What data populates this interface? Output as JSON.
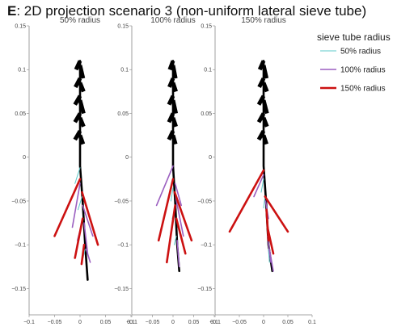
{
  "figure": {
    "letter": "E",
    "title": ": 2D projection scenario 3 (non-uniform lateral sieve tube)"
  },
  "legend": {
    "title": "sieve tube radius",
    "items": [
      {
        "label": "50% radius",
        "color": "#5bc8c8",
        "width": 1
      },
      {
        "label": "100% radius",
        "color": "#9b5fc0",
        "width": 1.6
      },
      {
        "label": "150% radius",
        "color": "#cc1111",
        "width": 2.6
      }
    ]
  },
  "chart_data": [
    {
      "type": "line",
      "title": "50% radius",
      "xlim": [
        -0.1,
        0.1
      ],
      "ylim": [
        -0.18,
        0.15
      ],
      "xticks": [
        -0.1,
        -0.05,
        0,
        0.05,
        0.1
      ],
      "yticks": [
        0.15,
        0.1,
        0.05,
        0,
        -0.05,
        -0.1,
        -0.15
      ],
      "series": [
        {
          "name": "main axis",
          "color": "#000000",
          "segments": [
            [
              [
                0.0,
                0.11
              ],
              [
                0.0,
                -0.01
              ],
              [
                0.005,
                -0.05
              ],
              [
                0.01,
                -0.1
              ],
              [
                0.015,
                -0.14
              ]
            ]
          ]
        },
        {
          "name": "shoot laterals",
          "color": "#000000",
          "segments": [
            [
              [
                0.0,
                0.11
              ],
              [
                -0.008,
                0.1
              ]
            ],
            [
              [
                0.0,
                0.105
              ],
              [
                0.006,
                0.09
              ]
            ],
            [
              [
                0.0,
                0.09
              ],
              [
                -0.009,
                0.08
              ]
            ],
            [
              [
                0.0,
                0.085
              ],
              [
                0.007,
                0.075
              ]
            ],
            [
              [
                0.0,
                0.07
              ],
              [
                -0.01,
                0.06
              ]
            ],
            [
              [
                0.0,
                0.065
              ],
              [
                0.007,
                0.05
              ]
            ],
            [
              [
                0.0,
                0.05
              ],
              [
                -0.01,
                0.04
              ]
            ],
            [
              [
                0.0,
                0.045
              ],
              [
                0.007,
                0.035
              ]
            ],
            [
              [
                0.0,
                0.03
              ],
              [
                -0.01,
                0.02
              ]
            ],
            [
              [
                0.0,
                0.025
              ],
              [
                0.006,
                0.015
              ]
            ]
          ]
        },
        {
          "name": "50% radius",
          "color": "#5bc8c8",
          "segments": [
            [
              [
                0.0,
                -0.012
              ],
              [
                -0.01,
                -0.03
              ]
            ],
            [
              [
                0.004,
                -0.045
              ],
              [
                -0.004,
                -0.06
              ]
            ],
            [
              [
                0.006,
                -0.07
              ],
              [
                0.0,
                -0.082
              ]
            ],
            [
              [
                0.01,
                -0.105
              ],
              [
                0.006,
                -0.115
              ]
            ]
          ]
        },
        {
          "name": "100% radius",
          "color": "#9b5fc0",
          "segments": [
            [
              [
                0.0,
                -0.03
              ],
              [
                -0.015,
                -0.08
              ]
            ],
            [
              [
                0.005,
                -0.055
              ],
              [
                0.025,
                -0.09
              ]
            ],
            [
              [
                0.006,
                -0.07
              ],
              [
                -0.005,
                -0.095
              ]
            ],
            [
              [
                0.008,
                -0.075
              ],
              [
                0.015,
                -0.11
              ]
            ],
            [
              [
                0.012,
                -0.105
              ],
              [
                0.02,
                -0.12
              ]
            ]
          ]
        },
        {
          "name": "150% radius",
          "color": "#cc1111",
          "segments": [
            [
              [
                0.0,
                -0.025
              ],
              [
                -0.05,
                -0.09
              ]
            ],
            [
              [
                0.004,
                -0.04
              ],
              [
                0.035,
                -0.1
              ]
            ],
            [
              [
                0.005,
                -0.07
              ],
              [
                -0.01,
                -0.115
              ]
            ],
            [
              [
                0.008,
                -0.1
              ],
              [
                0.003,
                -0.122
              ]
            ]
          ]
        }
      ]
    },
    {
      "type": "line",
      "title": "100% radius",
      "xlim": [
        -0.1,
        0.1
      ],
      "ylim": [
        -0.18,
        0.15
      ],
      "xticks": [
        -0.1,
        -0.05,
        0,
        0.05,
        0.1
      ],
      "yticks": [
        0.15,
        0.1,
        0.05,
        0,
        -0.05,
        -0.1,
        -0.15
      ],
      "series": [
        {
          "name": "main axis",
          "color": "#000000",
          "segments": [
            [
              [
                0.0,
                0.11
              ],
              [
                0.0,
                -0.01
              ],
              [
                0.005,
                -0.05
              ],
              [
                0.01,
                -0.1
              ],
              [
                0.015,
                -0.13
              ]
            ]
          ]
        },
        {
          "name": "shoot laterals",
          "color": "#000000",
          "segments": [
            [
              [
                0.0,
                0.11
              ],
              [
                -0.008,
                0.1
              ]
            ],
            [
              [
                0.0,
                0.105
              ],
              [
                0.006,
                0.09
              ]
            ],
            [
              [
                0.0,
                0.09
              ],
              [
                -0.009,
                0.08
              ]
            ],
            [
              [
                0.0,
                0.085
              ],
              [
                0.007,
                0.075
              ]
            ],
            [
              [
                0.0,
                0.07
              ],
              [
                -0.01,
                0.06
              ]
            ],
            [
              [
                0.0,
                0.065
              ],
              [
                0.007,
                0.05
              ]
            ],
            [
              [
                0.0,
                0.05
              ],
              [
                -0.01,
                0.04
              ]
            ],
            [
              [
                0.0,
                0.045
              ],
              [
                0.007,
                0.035
              ]
            ],
            [
              [
                0.0,
                0.03
              ],
              [
                -0.01,
                0.02
              ]
            ],
            [
              [
                0.0,
                0.025
              ],
              [
                0.006,
                0.015
              ]
            ]
          ]
        },
        {
          "name": "50% radius",
          "color": "#5bc8c8",
          "segments": [
            [
              [
                0.0,
                -0.035
              ],
              [
                -0.005,
                -0.05
              ]
            ],
            [
              [
                0.004,
                -0.06
              ],
              [
                -0.002,
                -0.07
              ]
            ],
            [
              [
                0.008,
                -0.09
              ],
              [
                0.003,
                -0.1
              ]
            ],
            [
              [
                0.012,
                -0.11
              ],
              [
                0.015,
                -0.12
              ]
            ]
          ]
        },
        {
          "name": "100% radius",
          "color": "#9b5fc0",
          "segments": [
            [
              [
                0.0,
                -0.01
              ],
              [
                -0.04,
                -0.055
              ]
            ],
            [
              [
                0.005,
                -0.03
              ],
              [
                0.02,
                -0.055
              ]
            ],
            [
              [
                0.006,
                -0.045
              ],
              [
                0.025,
                -0.09
              ]
            ],
            [
              [
                0.01,
                -0.095
              ],
              [
                0.015,
                -0.125
              ]
            ]
          ]
        },
        {
          "name": "150% radius",
          "color": "#cc1111",
          "segments": [
            [
              [
                0.0,
                -0.025
              ],
              [
                -0.035,
                -0.095
              ]
            ],
            [
              [
                0.004,
                -0.04
              ],
              [
                0.045,
                -0.095
              ]
            ],
            [
              [
                0.005,
                -0.055
              ],
              [
                -0.015,
                -0.12
              ]
            ],
            [
              [
                0.008,
                -0.07
              ],
              [
                0.03,
                -0.11
              ]
            ]
          ]
        }
      ]
    },
    {
      "type": "line",
      "title": "150% radius",
      "xlim": [
        -0.1,
        0.1
      ],
      "ylim": [
        -0.18,
        0.15
      ],
      "xticks": [
        -0.1,
        -0.05,
        0,
        0.05,
        0.1
      ],
      "yticks": [
        0.15,
        0.1,
        0.05,
        0,
        -0.05,
        -0.1,
        -0.15
      ],
      "series": [
        {
          "name": "main axis",
          "color": "#000000",
          "segments": [
            [
              [
                0.0,
                0.11
              ],
              [
                0.0,
                -0.01
              ],
              [
                0.005,
                -0.05
              ],
              [
                0.01,
                -0.1
              ],
              [
                0.018,
                -0.13
              ]
            ]
          ]
        },
        {
          "name": "shoot laterals",
          "color": "#000000",
          "segments": [
            [
              [
                0.0,
                0.11
              ],
              [
                -0.008,
                0.1
              ]
            ],
            [
              [
                0.0,
                0.105
              ],
              [
                0.006,
                0.09
              ]
            ],
            [
              [
                0.0,
                0.09
              ],
              [
                -0.009,
                0.08
              ]
            ],
            [
              [
                0.0,
                0.085
              ],
              [
                0.007,
                0.075
              ]
            ],
            [
              [
                0.0,
                0.07
              ],
              [
                -0.01,
                0.06
              ]
            ],
            [
              [
                0.0,
                0.065
              ],
              [
                0.007,
                0.05
              ]
            ],
            [
              [
                0.0,
                0.05
              ],
              [
                -0.01,
                0.04
              ]
            ],
            [
              [
                0.0,
                0.045
              ],
              [
                0.007,
                0.035
              ]
            ],
            [
              [
                0.0,
                0.03
              ],
              [
                -0.01,
                0.02
              ]
            ],
            [
              [
                0.0,
                0.025
              ],
              [
                0.006,
                0.015
              ]
            ]
          ]
        },
        {
          "name": "50% radius",
          "color": "#5bc8c8",
          "segments": [
            [
              [
                0.0,
                -0.025
              ],
              [
                -0.005,
                -0.04
              ]
            ],
            [
              [
                0.003,
                -0.045
              ],
              [
                0.0,
                -0.058
              ]
            ],
            [
              [
                0.008,
                -0.085
              ],
              [
                0.012,
                -0.095
              ]
            ],
            [
              [
                0.01,
                -0.105
              ],
              [
                0.012,
                -0.12
              ]
            ]
          ]
        },
        {
          "name": "100% radius",
          "color": "#9b5fc0",
          "segments": [
            [
              [
                0.0,
                -0.02
              ],
              [
                -0.02,
                -0.045
              ]
            ],
            [
              [
                0.004,
                -0.05
              ],
              [
                0.01,
                -0.07
              ]
            ],
            [
              [
                0.008,
                -0.09
              ],
              [
                0.015,
                -0.12
              ]
            ],
            [
              [
                0.012,
                -0.105
              ],
              [
                0.02,
                -0.13
              ]
            ]
          ]
        },
        {
          "name": "150% radius",
          "color": "#cc1111",
          "segments": [
            [
              [
                0.0,
                -0.015
              ],
              [
                -0.07,
                -0.085
              ]
            ],
            [
              [
                0.003,
                -0.045
              ],
              [
                0.05,
                -0.085
              ]
            ],
            [
              [
                0.006,
                -0.06
              ],
              [
                0.01,
                -0.095
              ]
            ],
            [
              [
                0.008,
                -0.08
              ],
              [
                0.02,
                -0.11
              ]
            ]
          ]
        }
      ]
    }
  ]
}
